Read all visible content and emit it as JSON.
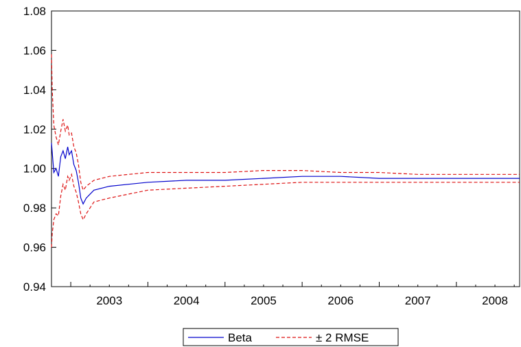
{
  "chart_data": {
    "type": "line",
    "title": "",
    "xlabel": "",
    "ylabel": "",
    "ylim": [
      0.94,
      1.08
    ],
    "y_ticks": [
      "0.94",
      "0.96",
      "0.98",
      "1.00",
      "1.02",
      "1.04",
      "1.06",
      "1.08"
    ],
    "x_range": [
      2002.75,
      2008.82
    ],
    "x_ticks": [
      "2003",
      "2004",
      "2005",
      "2006",
      "2007",
      "2008"
    ],
    "grid": false,
    "legend_placement": "bottom-center",
    "series": [
      {
        "name": "Beta",
        "color": "#0000cc",
        "style": "solid",
        "points": [
          [
            2002.75,
            1.013
          ],
          [
            2002.78,
            0.998
          ],
          [
            2002.81,
            1.0
          ],
          [
            2002.84,
            0.996
          ],
          [
            2002.87,
            1.006
          ],
          [
            2002.9,
            1.009
          ],
          [
            2002.93,
            1.005
          ],
          [
            2002.96,
            1.011
          ],
          [
            2002.98,
            1.007
          ],
          [
            2003.01,
            1.009
          ],
          [
            2003.04,
            1.002
          ],
          [
            2003.07,
            0.999
          ],
          [
            2003.1,
            0.993
          ],
          [
            2003.13,
            0.985
          ],
          [
            2003.16,
            0.982
          ],
          [
            2003.2,
            0.985
          ],
          [
            2003.3,
            0.989
          ],
          [
            2003.5,
            0.991
          ],
          [
            2003.75,
            0.992
          ],
          [
            2004.0,
            0.993
          ],
          [
            2004.5,
            0.994
          ],
          [
            2005.0,
            0.994
          ],
          [
            2005.5,
            0.995
          ],
          [
            2006.0,
            0.996
          ],
          [
            2006.5,
            0.996
          ],
          [
            2007.0,
            0.995
          ],
          [
            2007.5,
            0.995
          ],
          [
            2008.0,
            0.995
          ],
          [
            2008.5,
            0.995
          ],
          [
            2008.82,
            0.995
          ]
        ]
      },
      {
        "name": "± 2 RMSE",
        "color": "#dd1111",
        "style": "dashed",
        "points_upper": [
          [
            2002.75,
            1.058
          ],
          [
            2002.76,
            1.04
          ],
          [
            2002.78,
            1.022
          ],
          [
            2002.81,
            1.016
          ],
          [
            2002.84,
            1.012
          ],
          [
            2002.87,
            1.019
          ],
          [
            2002.9,
            1.025
          ],
          [
            2002.93,
            1.019
          ],
          [
            2002.96,
            1.022
          ],
          [
            2002.98,
            1.017
          ],
          [
            2003.01,
            1.018
          ],
          [
            2003.04,
            1.011
          ],
          [
            2003.07,
            1.008
          ],
          [
            2003.1,
            1.002
          ],
          [
            2003.13,
            0.993
          ],
          [
            2003.16,
            0.989
          ],
          [
            2003.2,
            0.991
          ],
          [
            2003.3,
            0.994
          ],
          [
            2003.5,
            0.996
          ],
          [
            2003.75,
            0.997
          ],
          [
            2004.0,
            0.998
          ],
          [
            2004.5,
            0.998
          ],
          [
            2005.0,
            0.998
          ],
          [
            2005.5,
            0.999
          ],
          [
            2006.0,
            0.999
          ],
          [
            2006.5,
            0.998
          ],
          [
            2007.0,
            0.998
          ],
          [
            2007.5,
            0.997
          ],
          [
            2008.0,
            0.997
          ],
          [
            2008.5,
            0.997
          ],
          [
            2008.82,
            0.997
          ]
        ],
        "points_lower": [
          [
            2002.75,
            0.96
          ],
          [
            2002.76,
            0.967
          ],
          [
            2002.78,
            0.974
          ],
          [
            2002.81,
            0.977
          ],
          [
            2002.84,
            0.976
          ],
          [
            2002.87,
            0.986
          ],
          [
            2002.9,
            0.992
          ],
          [
            2002.93,
            0.989
          ],
          [
            2002.96,
            0.996
          ],
          [
            2002.98,
            0.994
          ],
          [
            2003.01,
            0.997
          ],
          [
            2003.04,
            0.991
          ],
          [
            2003.07,
            0.988
          ],
          [
            2003.1,
            0.983
          ],
          [
            2003.13,
            0.977
          ],
          [
            2003.16,
            0.974
          ],
          [
            2003.2,
            0.977
          ],
          [
            2003.3,
            0.983
          ],
          [
            2003.5,
            0.985
          ],
          [
            2003.75,
            0.987
          ],
          [
            2004.0,
            0.989
          ],
          [
            2004.5,
            0.99
          ],
          [
            2005.0,
            0.991
          ],
          [
            2005.5,
            0.992
          ],
          [
            2006.0,
            0.993
          ],
          [
            2006.5,
            0.993
          ],
          [
            2007.0,
            0.993
          ],
          [
            2007.5,
            0.993
          ],
          [
            2008.0,
            0.993
          ],
          [
            2008.5,
            0.993
          ],
          [
            2008.82,
            0.993
          ]
        ]
      }
    ],
    "legend": {
      "entries": [
        {
          "label": "Beta",
          "color": "#0000cc",
          "style": "solid"
        },
        {
          "label": "± 2 RMSE",
          "color": "#dd1111",
          "style": "dashed"
        }
      ]
    }
  }
}
